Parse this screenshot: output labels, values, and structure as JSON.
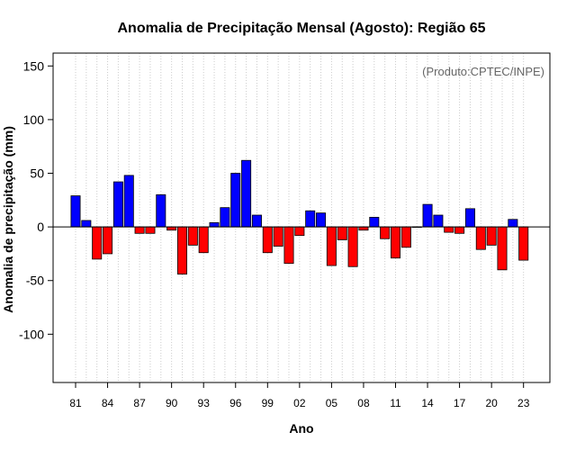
{
  "chart_data": {
    "type": "bar",
    "title": "Anomalia de Precipitação Mensal (Agosto): Região 65",
    "xlabel": "Ano",
    "ylabel": "Anomalia de precipitação (mm)",
    "credit": "(Produto:CPTEC/INPE)",
    "ylim": [
      -145,
      162
    ],
    "yticks": [
      -100,
      -50,
      0,
      50,
      100,
      150
    ],
    "ytick_labels": [
      "-100",
      "-50",
      "0",
      "50",
      "100",
      "150"
    ],
    "xticks": [
      {
        "year": 1981,
        "label": "81"
      },
      {
        "year": 1984,
        "label": "84"
      },
      {
        "year": 1987,
        "label": "87"
      },
      {
        "year": 1990,
        "label": "90"
      },
      {
        "year": 1993,
        "label": "93"
      },
      {
        "year": 1996,
        "label": "96"
      },
      {
        "year": 1999,
        "label": "99"
      },
      {
        "year": 2002,
        "label": "02"
      },
      {
        "year": 2005,
        "label": "05"
      },
      {
        "year": 2008,
        "label": "08"
      },
      {
        "year": 2011,
        "label": "11"
      },
      {
        "year": 2014,
        "label": "14"
      },
      {
        "year": 2017,
        "label": "17"
      },
      {
        "year": 2020,
        "label": "20"
      },
      {
        "year": 2023,
        "label": "23"
      }
    ],
    "years": [
      1981,
      1982,
      1983,
      1984,
      1985,
      1986,
      1987,
      1988,
      1989,
      1990,
      1991,
      1992,
      1993,
      1994,
      1995,
      1996,
      1997,
      1998,
      1999,
      2000,
      2001,
      2002,
      2003,
      2004,
      2005,
      2006,
      2007,
      2008,
      2009,
      2010,
      2011,
      2012,
      2013,
      2014,
      2015,
      2016,
      2017,
      2018,
      2019,
      2020,
      2021,
      2022,
      2023
    ],
    "values": [
      29,
      6,
      -30,
      -25,
      42,
      48,
      -6,
      -6,
      30,
      -3,
      -44,
      -17,
      -24,
      4,
      18,
      50,
      62,
      11,
      -24,
      -18,
      -34,
      -8,
      15,
      13,
      -36,
      -12,
      -37,
      -3,
      9,
      -11,
      -29,
      -19,
      0,
      21,
      11,
      -5,
      -6,
      17,
      -21,
      -17,
      -40,
      7,
      -31
    ],
    "colors": {
      "positive": "#0000ff",
      "negative": "#ff0000",
      "grid": "#cccccc",
      "axis": "#000000"
    }
  }
}
